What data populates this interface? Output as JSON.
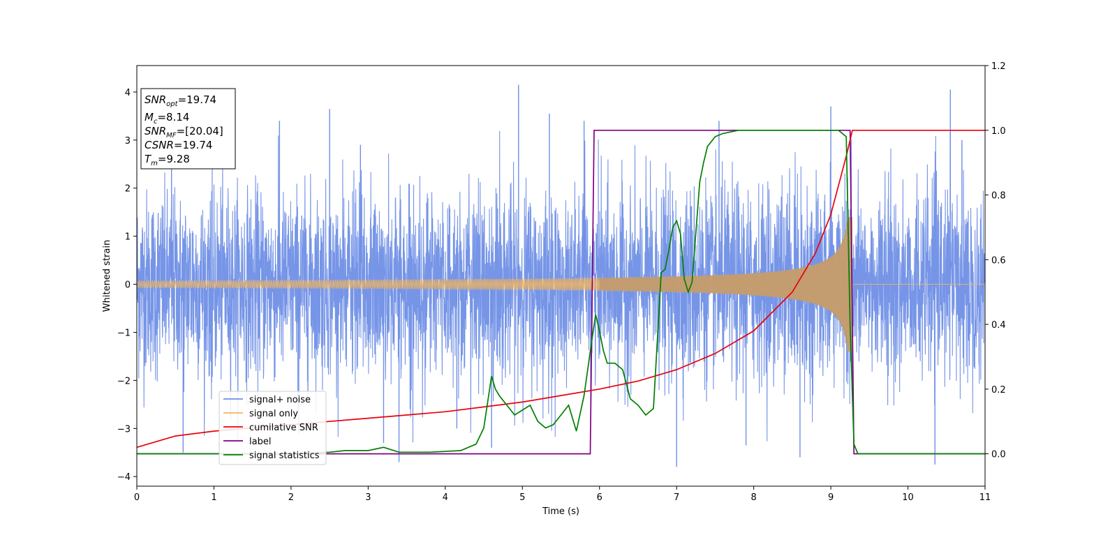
{
  "chart_data": {
    "type": "line",
    "xlabel": "Time (s)",
    "ylabel": "Whitened strain",
    "xlim": [
      0,
      11
    ],
    "ylim": [
      -4.2,
      4.55
    ],
    "y2lim": [
      -0.1,
      1.2
    ],
    "x_ticks": [
      "0",
      "1",
      "2",
      "3",
      "4",
      "5",
      "6",
      "7",
      "8",
      "9",
      "10",
      "11"
    ],
    "y_ticks": [
      "−4",
      "−3",
      "−2",
      "−1",
      "0",
      "1",
      "2",
      "3",
      "4"
    ],
    "y2_ticks": [
      "0.0",
      "0.2",
      "0.4",
      "0.6",
      "0.8",
      "1.0",
      "1.2"
    ],
    "grid": false,
    "legend_position": "lower-left",
    "annotation": {
      "lines": [
        {
          "base": "SNR",
          "sub": "opt",
          "rest": "=19.74"
        },
        {
          "base": "M",
          "sub": "c",
          "rest": "=8.14"
        },
        {
          "base": "SNR",
          "sub": "MF",
          "rest": "=[20.04]"
        },
        {
          "base": "CSNR",
          "sub": "",
          "rest": "=19.74"
        },
        {
          "base": "T",
          "sub": "m",
          "rest": "=9.28"
        }
      ]
    },
    "merger_time": 9.28,
    "noise_sigma": 1.0,
    "series": [
      {
        "name": "signal+ noise",
        "axis": "left",
        "color": "#6f8fe6",
        "spikes": [
          [
            0.45,
            3.0
          ],
          [
            0.6,
            -3.5
          ],
          [
            1.85,
            3.4
          ],
          [
            2.1,
            -3.1
          ],
          [
            2.5,
            3.65
          ],
          [
            2.9,
            2.9
          ],
          [
            3.2,
            -3.3
          ],
          [
            3.4,
            -3.7
          ],
          [
            4.15,
            -3.0
          ],
          [
            4.6,
            -3.4
          ],
          [
            4.95,
            4.15
          ],
          [
            5.35,
            3.55
          ],
          [
            5.8,
            3.4
          ],
          [
            7.0,
            -3.8
          ],
          [
            7.55,
            3.4
          ],
          [
            7.9,
            -3.35
          ],
          [
            8.6,
            -3.6
          ],
          [
            9.0,
            3.7
          ],
          [
            10.55,
            4.05
          ],
          [
            10.35,
            -3.75
          ],
          [
            10.7,
            3.0
          ]
        ]
      },
      {
        "name": "signal only",
        "axis": "left",
        "color": "#f5b55a",
        "amplitude_start": 0.07,
        "amplitude_peak": 1.4,
        "end_value": 0
      },
      {
        "name": "cumilative SNR",
        "axis": "right",
        "color": "#e8000b",
        "x": [
          0,
          0.5,
          1,
          1.5,
          2,
          2.5,
          3,
          3.5,
          4,
          4.5,
          5,
          5.5,
          6,
          6.5,
          7,
          7.5,
          8,
          8.5,
          8.8,
          9.0,
          9.2,
          9.28,
          9.3,
          11
        ],
        "y": [
          0.02,
          0.055,
          0.07,
          0.08,
          0.09,
          0.1,
          0.11,
          0.12,
          0.13,
          0.145,
          0.16,
          0.18,
          0.2,
          0.225,
          0.26,
          0.31,
          0.38,
          0.5,
          0.62,
          0.74,
          0.92,
          1.0,
          1.0,
          1.0
        ]
      },
      {
        "name": "label",
        "axis": "right",
        "color": "#800080",
        "x": [
          0,
          5.88,
          5.93,
          9.25,
          9.3,
          11
        ],
        "y": [
          0,
          0,
          1,
          1,
          0,
          0
        ]
      },
      {
        "name": "signal statistics",
        "axis": "right",
        "color": "#007f00",
        "x": [
          0,
          1,
          2,
          2.5,
          2.7,
          3.0,
          3.2,
          3.4,
          3.8,
          4.2,
          4.4,
          4.5,
          4.6,
          4.65,
          4.7,
          4.9,
          5.1,
          5.2,
          5.3,
          5.4,
          5.5,
          5.6,
          5.7,
          5.8,
          5.9,
          5.95,
          6.0,
          6.05,
          6.1,
          6.2,
          6.3,
          6.4,
          6.5,
          6.6,
          6.7,
          6.8,
          6.85,
          6.9,
          6.95,
          7.0,
          7.05,
          7.1,
          7.15,
          7.2,
          7.3,
          7.35,
          7.4,
          7.5,
          7.6,
          7.8,
          8.0,
          8.2,
          8.4,
          8.8,
          9.1,
          9.2,
          9.25,
          9.3,
          9.35,
          11
        ],
        "y": [
          0,
          0,
          0,
          0.005,
          0.01,
          0.01,
          0.02,
          0.005,
          0.005,
          0.01,
          0.03,
          0.08,
          0.24,
          0.2,
          0.18,
          0.12,
          0.15,
          0.1,
          0.08,
          0.09,
          0.12,
          0.15,
          0.07,
          0.18,
          0.35,
          0.43,
          0.38,
          0.32,
          0.28,
          0.28,
          0.26,
          0.17,
          0.15,
          0.12,
          0.14,
          0.56,
          0.57,
          0.63,
          0.7,
          0.72,
          0.68,
          0.54,
          0.5,
          0.53,
          0.84,
          0.9,
          0.95,
          0.98,
          0.99,
          1.0,
          1.0,
          1.0,
          1.0,
          1.0,
          1.0,
          0.98,
          0.4,
          0.03,
          0.0,
          0.0
        ]
      }
    ]
  }
}
